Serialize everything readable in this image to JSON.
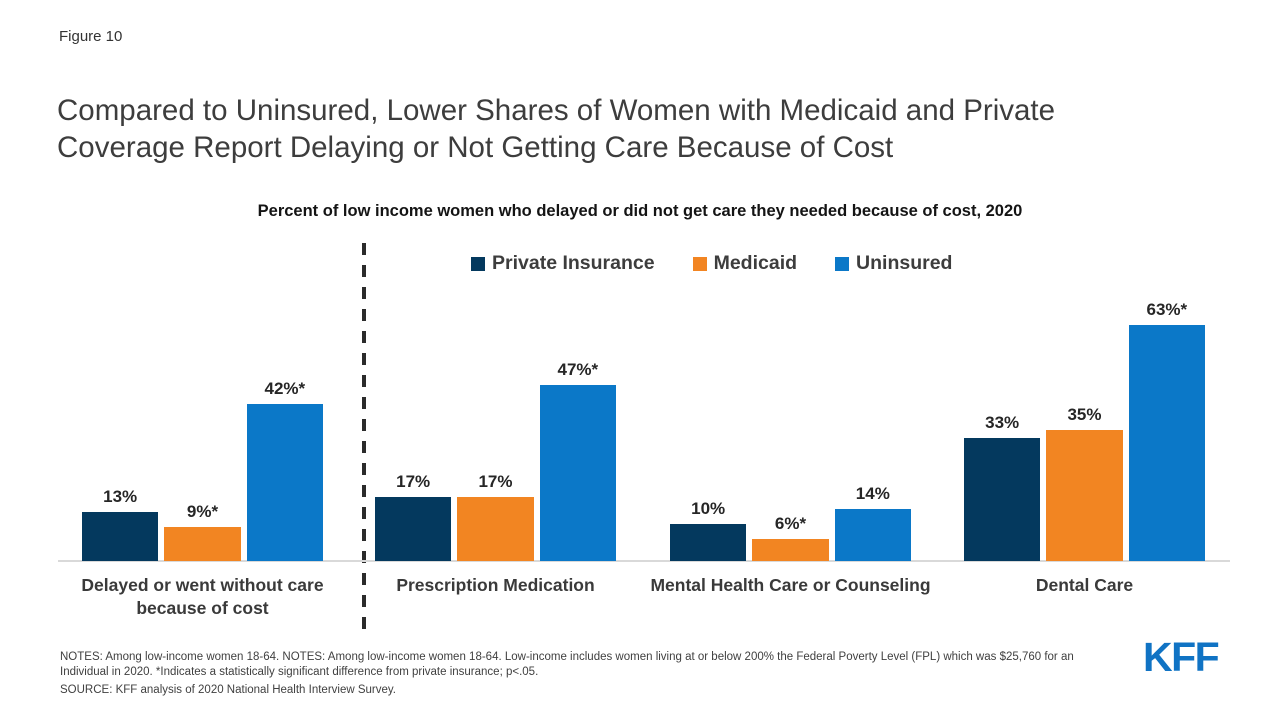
{
  "figure_label": "Figure 10",
  "title": "Compared to Uninsured, Lower Shares of Women with Medicaid and Private Coverage Report Delaying or Not Getting Care Because of Cost",
  "chart_data": {
    "type": "bar",
    "title": "Percent of low income women who delayed or did not get care they needed because of cost, 2020",
    "categories": [
      "Delayed or went without care because of cost",
      "Prescription Medication",
      "Mental Health Care or Counseling",
      "Dental Care"
    ],
    "series": [
      {
        "name": "Private Insurance",
        "color": "#04395e",
        "values": [
          13,
          17,
          10,
          33
        ],
        "labels": [
          "13%",
          "17%",
          "10%",
          "33%"
        ]
      },
      {
        "name": "Medicaid",
        "color": "#f28522",
        "values": [
          9,
          17,
          6,
          35
        ],
        "labels": [
          "9%*",
          "17%",
          "6%*",
          "35%"
        ]
      },
      {
        "name": "Uninsured",
        "color": "#0b78c8",
        "values": [
          42,
          47,
          14,
          63
        ],
        "labels": [
          "42%*",
          "47%*",
          "14%",
          "63%*"
        ]
      }
    ],
    "ylim": [
      0,
      70
    ],
    "grid": false,
    "legend_position": "top",
    "axis_color": "#d9d9d9",
    "separator": "dashed vertical line after first category group",
    "annotation_note": "* indicates statistically significant difference from private insurance"
  },
  "notes": "NOTES: Among low-income women 18-64. NOTES: Among low-income women 18-64. Low-income includes women living at or below 200% the Federal Poverty Level (FPL) which was $25,760 for an Individual in 2020. *Indicates a statistically significant difference from private insurance; p<.05.",
  "source": "SOURCE: KFF analysis of 2020 National Health Interview Survey.",
  "logo_text": "KFF",
  "colors": {
    "logo_blue": "#1073c4",
    "title_gray": "#3d3d3d"
  }
}
